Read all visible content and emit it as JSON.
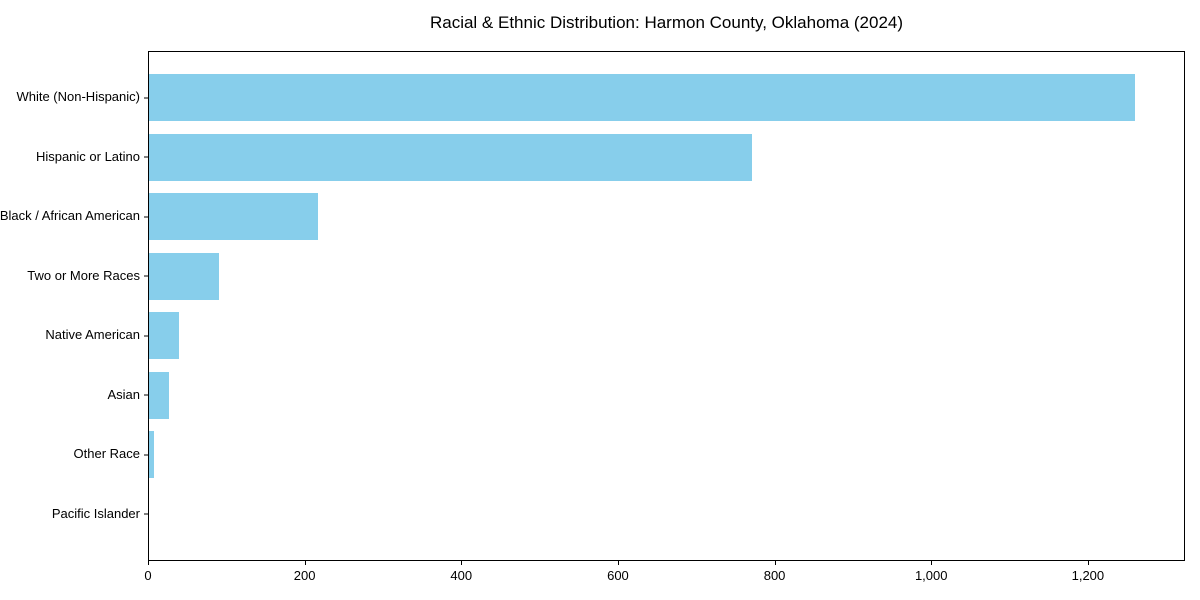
{
  "title": "Racial & Ethnic Distribution: Harmon County, Oklahoma (2024)",
  "chart_data": {
    "type": "bar",
    "orientation": "horizontal",
    "title": "Racial & Ethnic Distribution: Harmon County, Oklahoma (2024)",
    "xlabel": "",
    "ylabel": "",
    "categories": [
      "White (Non-Hispanic)",
      "Hispanic or Latino",
      "Black / African American",
      "Two or More Races",
      "Native American",
      "Asian",
      "Other Race",
      "Pacific Islander"
    ],
    "values": [
      1261,
      771,
      216,
      89,
      38,
      25,
      6,
      0
    ],
    "xlim": [
      0,
      1324
    ],
    "xticks": {
      "values": [
        0,
        200,
        400,
        600,
        800,
        1000,
        1200
      ],
      "labels": [
        "0",
        "200",
        "400",
        "600",
        "800",
        "1,000",
        "1,200"
      ]
    },
    "bar_color": "#87CEEB",
    "background_color": "#ffffff",
    "grid": false,
    "legend": null
  }
}
